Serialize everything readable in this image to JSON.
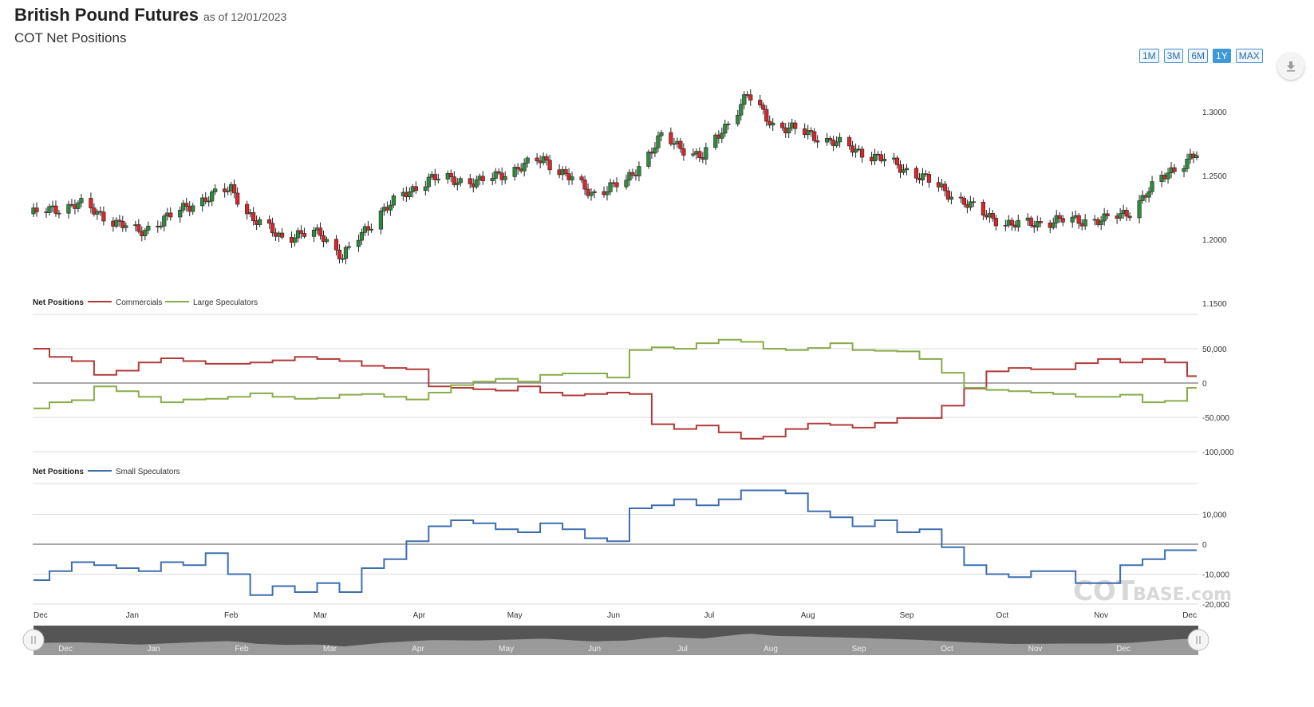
{
  "header": {
    "title": "British Pound Futures",
    "as_of": "as of 12/01/2023",
    "subtitle": "COT Net Positions"
  },
  "range_buttons": [
    {
      "label": "1M",
      "active": false
    },
    {
      "label": "3M",
      "active": false
    },
    {
      "label": "6M",
      "active": false
    },
    {
      "label": "1Y",
      "active": true
    },
    {
      "label": "MAX",
      "active": false
    }
  ],
  "download_icon": "download-icon",
  "watermark": {
    "main": "COT",
    "tail": "BASE.com"
  },
  "colors": {
    "up": "#2e8b3d",
    "down": "#d9262a",
    "commercials": "#b23a3a",
    "large_speculators": "#8aab4a",
    "small_speculators": "#3e6eb0",
    "navigator_bg": "#555555",
    "navigator_fill": "#9a9a9a"
  },
  "chart_data": [
    {
      "type": "candlestick",
      "title": "British Pound Futures",
      "y_ticks": [
        "1.3000",
        "1.2500",
        "1.2000",
        "1.1500"
      ],
      "ylim": [
        1.15,
        1.325
      ],
      "x_tick_labels": [
        "Dec",
        "Jan",
        "Feb",
        "Mar",
        "Apr",
        "May",
        "Jun",
        "Jul",
        "Aug",
        "Sep",
        "Oct",
        "Nov",
        "Dec"
      ],
      "x_range": [
        "2022-12-01",
        "2023-12-01"
      ],
      "close_path": [
        [
          "2022-12-01",
          1.22
        ],
        [
          "2022-12-15",
          1.228
        ],
        [
          "2023-01-03",
          1.205
        ],
        [
          "2023-01-20",
          1.228
        ],
        [
          "2023-02-01",
          1.24
        ],
        [
          "2023-02-08",
          1.215
        ],
        [
          "2023-02-17",
          1.202
        ],
        [
          "2023-03-01",
          1.205
        ],
        [
          "2023-03-08",
          1.186
        ],
        [
          "2023-03-20",
          1.222
        ],
        [
          "2023-04-04",
          1.248
        ],
        [
          "2023-04-20",
          1.245
        ],
        [
          "2023-05-10",
          1.263
        ],
        [
          "2023-05-25",
          1.236
        ],
        [
          "2023-06-05",
          1.245
        ],
        [
          "2023-06-16",
          1.28
        ],
        [
          "2023-06-29",
          1.264
        ],
        [
          "2023-07-13",
          1.313
        ],
        [
          "2023-07-21",
          1.29
        ],
        [
          "2023-08-01",
          1.283
        ],
        [
          "2023-08-15",
          1.271
        ],
        [
          "2023-08-25",
          1.262
        ],
        [
          "2023-09-05",
          1.25
        ],
        [
          "2023-09-25",
          1.22
        ],
        [
          "2023-10-04",
          1.211
        ],
        [
          "2023-10-20",
          1.215
        ],
        [
          "2023-11-02",
          1.215
        ],
        [
          "2023-11-10",
          1.222
        ],
        [
          "2023-11-22",
          1.253
        ],
        [
          "2023-12-01",
          1.266
        ]
      ]
    },
    {
      "type": "line",
      "legend_title": "Net Positions",
      "y_ticks": [
        50000,
        0,
        -50000,
        -100000
      ],
      "y_tick_labels": [
        "50,000",
        "0",
        "-50,000",
        "-100,000"
      ],
      "ylim": [
        -100000,
        100000
      ],
      "x_range": [
        "2022-12-01",
        "2023-12-01"
      ],
      "series": [
        {
          "name": "Commercials",
          "x": [
            "2022-12-01",
            "2022-12-06",
            "2022-12-13",
            "2022-12-20",
            "2022-12-27",
            "2023-01-03",
            "2023-01-10",
            "2023-01-17",
            "2023-01-24",
            "2023-01-31",
            "2023-02-07",
            "2023-02-14",
            "2023-02-21",
            "2023-02-28",
            "2023-03-07",
            "2023-03-14",
            "2023-03-21",
            "2023-03-28",
            "2023-04-04",
            "2023-04-11",
            "2023-04-18",
            "2023-04-25",
            "2023-05-02",
            "2023-05-09",
            "2023-05-16",
            "2023-05-23",
            "2023-05-30",
            "2023-06-06",
            "2023-06-13",
            "2023-06-20",
            "2023-06-27",
            "2023-07-04",
            "2023-07-11",
            "2023-07-18",
            "2023-07-25",
            "2023-08-01",
            "2023-08-08",
            "2023-08-15",
            "2023-08-22",
            "2023-08-29",
            "2023-09-05",
            "2023-09-12",
            "2023-09-19",
            "2023-09-26",
            "2023-10-03",
            "2023-10-10",
            "2023-10-17",
            "2023-10-24",
            "2023-10-31",
            "2023-11-07",
            "2023-11-14",
            "2023-11-21",
            "2023-11-28",
            "2023-12-01"
          ],
          "values": [
            50000,
            38000,
            32000,
            12000,
            18000,
            30000,
            36000,
            32000,
            28000,
            28000,
            30000,
            33000,
            38000,
            35000,
            32000,
            25000,
            22000,
            20000,
            -5000,
            -7000,
            -9000,
            -11000,
            -5000,
            -14000,
            -18000,
            -16000,
            -14000,
            -16000,
            -60000,
            -67000,
            -62000,
            -72000,
            -81000,
            -78000,
            -67000,
            -59000,
            -61000,
            -65000,
            -58000,
            -51000,
            -51000,
            -33000,
            -8000,
            17000,
            22000,
            20000,
            20000,
            29000,
            35000,
            30000,
            35000,
            30000,
            10000,
            10000
          ]
        },
        {
          "name": "Large Speculators",
          "x": [
            "2022-12-01",
            "2022-12-06",
            "2022-12-13",
            "2022-12-20",
            "2022-12-27",
            "2023-01-03",
            "2023-01-10",
            "2023-01-17",
            "2023-01-24",
            "2023-01-31",
            "2023-02-07",
            "2023-02-14",
            "2023-02-21",
            "2023-02-28",
            "2023-03-07",
            "2023-03-14",
            "2023-03-21",
            "2023-03-28",
            "2023-04-04",
            "2023-04-11",
            "2023-04-18",
            "2023-04-25",
            "2023-05-02",
            "2023-05-09",
            "2023-05-16",
            "2023-05-23",
            "2023-05-30",
            "2023-06-06",
            "2023-06-13",
            "2023-06-20",
            "2023-06-27",
            "2023-07-04",
            "2023-07-11",
            "2023-07-18",
            "2023-07-25",
            "2023-08-01",
            "2023-08-08",
            "2023-08-15",
            "2023-08-22",
            "2023-08-29",
            "2023-09-05",
            "2023-09-12",
            "2023-09-19",
            "2023-09-26",
            "2023-10-03",
            "2023-10-10",
            "2023-10-17",
            "2023-10-24",
            "2023-10-31",
            "2023-11-07",
            "2023-11-14",
            "2023-11-21",
            "2023-11-28",
            "2023-12-01"
          ],
          "values": [
            -37000,
            -28000,
            -25000,
            -5000,
            -12000,
            -20000,
            -28000,
            -24000,
            -23000,
            -20000,
            -15000,
            -20000,
            -23000,
            -22000,
            -17000,
            -16000,
            -20000,
            -24000,
            -14000,
            -3000,
            2000,
            6000,
            2000,
            12000,
            14000,
            14000,
            8000,
            48000,
            52000,
            50000,
            58000,
            63000,
            60000,
            50000,
            48000,
            51000,
            58000,
            48000,
            47000,
            46000,
            35000,
            15000,
            -7000,
            -10000,
            -12000,
            -14000,
            -16000,
            -20000,
            -20000,
            -17000,
            -28000,
            -26000,
            -7000,
            -7000
          ]
        }
      ]
    },
    {
      "type": "line",
      "legend_title": "Net Positions",
      "y_ticks": [
        10000,
        0,
        -10000,
        -20000
      ],
      "y_tick_labels": [
        "10,000",
        "0",
        "-10,000",
        "-20,000"
      ],
      "ylim": [
        -20000,
        20000
      ],
      "x_range": [
        "2022-12-01",
        "2023-12-01"
      ],
      "series": [
        {
          "name": "Small Speculators",
          "x": [
            "2022-12-01",
            "2022-12-06",
            "2022-12-13",
            "2022-12-20",
            "2022-12-27",
            "2023-01-03",
            "2023-01-10",
            "2023-01-17",
            "2023-01-24",
            "2023-01-31",
            "2023-02-07",
            "2023-02-14",
            "2023-02-21",
            "2023-02-28",
            "2023-03-07",
            "2023-03-14",
            "2023-03-21",
            "2023-03-28",
            "2023-04-04",
            "2023-04-11",
            "2023-04-18",
            "2023-04-25",
            "2023-05-02",
            "2023-05-09",
            "2023-05-16",
            "2023-05-23",
            "2023-05-30",
            "2023-06-06",
            "2023-06-13",
            "2023-06-20",
            "2023-06-27",
            "2023-07-04",
            "2023-07-11",
            "2023-07-18",
            "2023-07-25",
            "2023-08-01",
            "2023-08-08",
            "2023-08-15",
            "2023-08-22",
            "2023-08-29",
            "2023-09-05",
            "2023-09-12",
            "2023-09-19",
            "2023-09-26",
            "2023-10-03",
            "2023-10-10",
            "2023-10-17",
            "2023-10-24",
            "2023-10-31",
            "2023-11-07",
            "2023-11-14",
            "2023-11-21",
            "2023-11-28",
            "2023-12-01"
          ],
          "values": [
            -12000,
            -9000,
            -6000,
            -7000,
            -8000,
            -9000,
            -6000,
            -7000,
            -3000,
            -10000,
            -17000,
            -14000,
            -16000,
            -13000,
            -16000,
            -8000,
            -5000,
            1000,
            6000,
            8000,
            7000,
            5000,
            4000,
            7000,
            5000,
            2000,
            1000,
            12000,
            13000,
            15000,
            13000,
            15000,
            18000,
            18000,
            17000,
            11000,
            9000,
            6000,
            8000,
            4000,
            5000,
            -1000,
            -7000,
            -10000,
            -11000,
            -9000,
            -9000,
            -13000,
            -13000,
            -7000,
            -5000,
            -2000,
            -2000,
            -2000
          ]
        }
      ]
    }
  ],
  "navigator": {
    "month_labels": [
      "Dec",
      "Jan",
      "Feb",
      "Mar",
      "Apr",
      "May",
      "Jun",
      "Jul",
      "Aug",
      "Sep",
      "Oct",
      "Nov",
      "Dec"
    ]
  }
}
